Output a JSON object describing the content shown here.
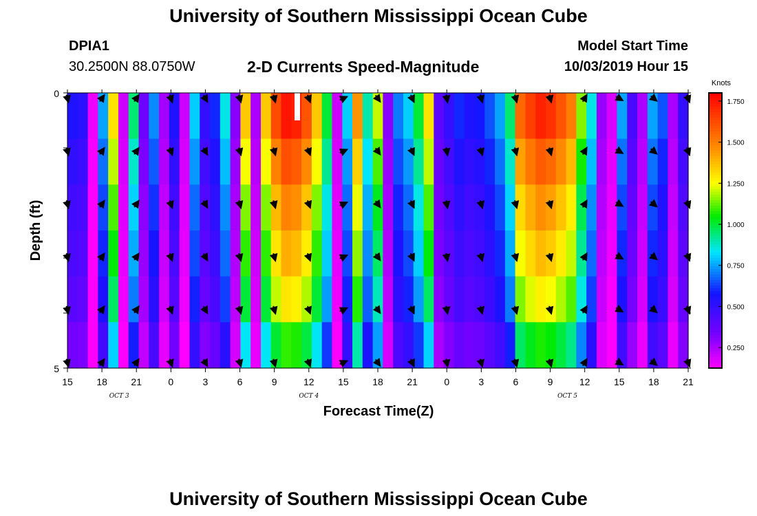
{
  "header": {
    "title_top": "University of Southern Mississippi Ocean Cube",
    "title_bottom": "University of Southern Mississippi Ocean Cube",
    "station_id": "DPIA1",
    "station_coords": "30.2500N 88.0750W",
    "chart_title": "2-D Currents Speed-Magnitude",
    "model_start_label": "Model Start Time",
    "model_start_value": "10/03/2019 Hour 15"
  },
  "chart_data": {
    "type": "heatmap",
    "title": "2-D Currents Speed-Magnitude",
    "xlabel": "Forecast Time(Z)",
    "ylabel": "Depth (ft)",
    "x_tick_labels": [
      "15",
      "18",
      "21",
      "0",
      "3",
      "6",
      "9",
      "12",
      "15",
      "18",
      "21",
      "0",
      "3",
      "6",
      "9",
      "12",
      "15",
      "18",
      "21"
    ],
    "y_tick_labels": [
      "0",
      "5"
    ],
    "ylim": [
      0,
      5
    ],
    "date_labels": [
      {
        "label": "OCT 3",
        "at_tick": 1.5
      },
      {
        "label": "OCT 4",
        "at_tick": 7
      },
      {
        "label": "OCT 5",
        "at_tick": 14.5
      }
    ],
    "colorbar": {
      "unit": "Knots",
      "min": 0.125,
      "max": 1.8,
      "ticks": [
        "0.250",
        "0.500",
        "0.750",
        "1.000",
        "1.250",
        "1.500",
        "1.750"
      ],
      "tick_values": [
        0.25,
        0.5,
        0.75,
        1.0,
        1.25,
        1.5,
        1.75
      ]
    },
    "time_profile_knots": [
      0.55,
      0.52,
      0.15,
      0.75,
      1.3,
      0.2,
      0.95,
      0.35,
      0.72,
      0.26,
      0.55,
      0.2,
      0.8,
      0.5,
      0.6,
      0.85,
      0.3,
      1.35,
      0.25,
      1.35,
      1.62,
      1.75,
      1.72,
      1.6,
      1.35,
      1.0,
      0.2,
      0.8,
      1.45,
      0.9,
      1.2,
      0.3,
      0.7,
      0.8,
      1.0,
      1.3,
      0.4,
      0.5,
      0.6,
      0.55,
      0.58,
      0.65,
      0.75,
      0.95,
      1.55,
      1.65,
      1.72,
      1.68,
      1.6,
      1.5,
      1.15,
      0.85,
      0.28,
      0.18,
      0.75,
      0.45,
      0.25,
      0.75,
      0.65,
      0.25,
      0.5
    ],
    "depth_scale": [
      1.0,
      0.92,
      0.85,
      0.8,
      0.74,
      0.62
    ],
    "vector_direction_deg": [
      165,
      165,
      35,
      35,
      70,
      160,
      150,
      160,
      165,
      165,
      165,
      160,
      35,
      65,
      130,
      145,
      155,
      165,
      170,
      165,
      165,
      165,
      165,
      165,
      30,
      60,
      120,
      130,
      150,
      160
    ],
    "vector_depth_rows": 6,
    "vector_time_count": 19
  }
}
